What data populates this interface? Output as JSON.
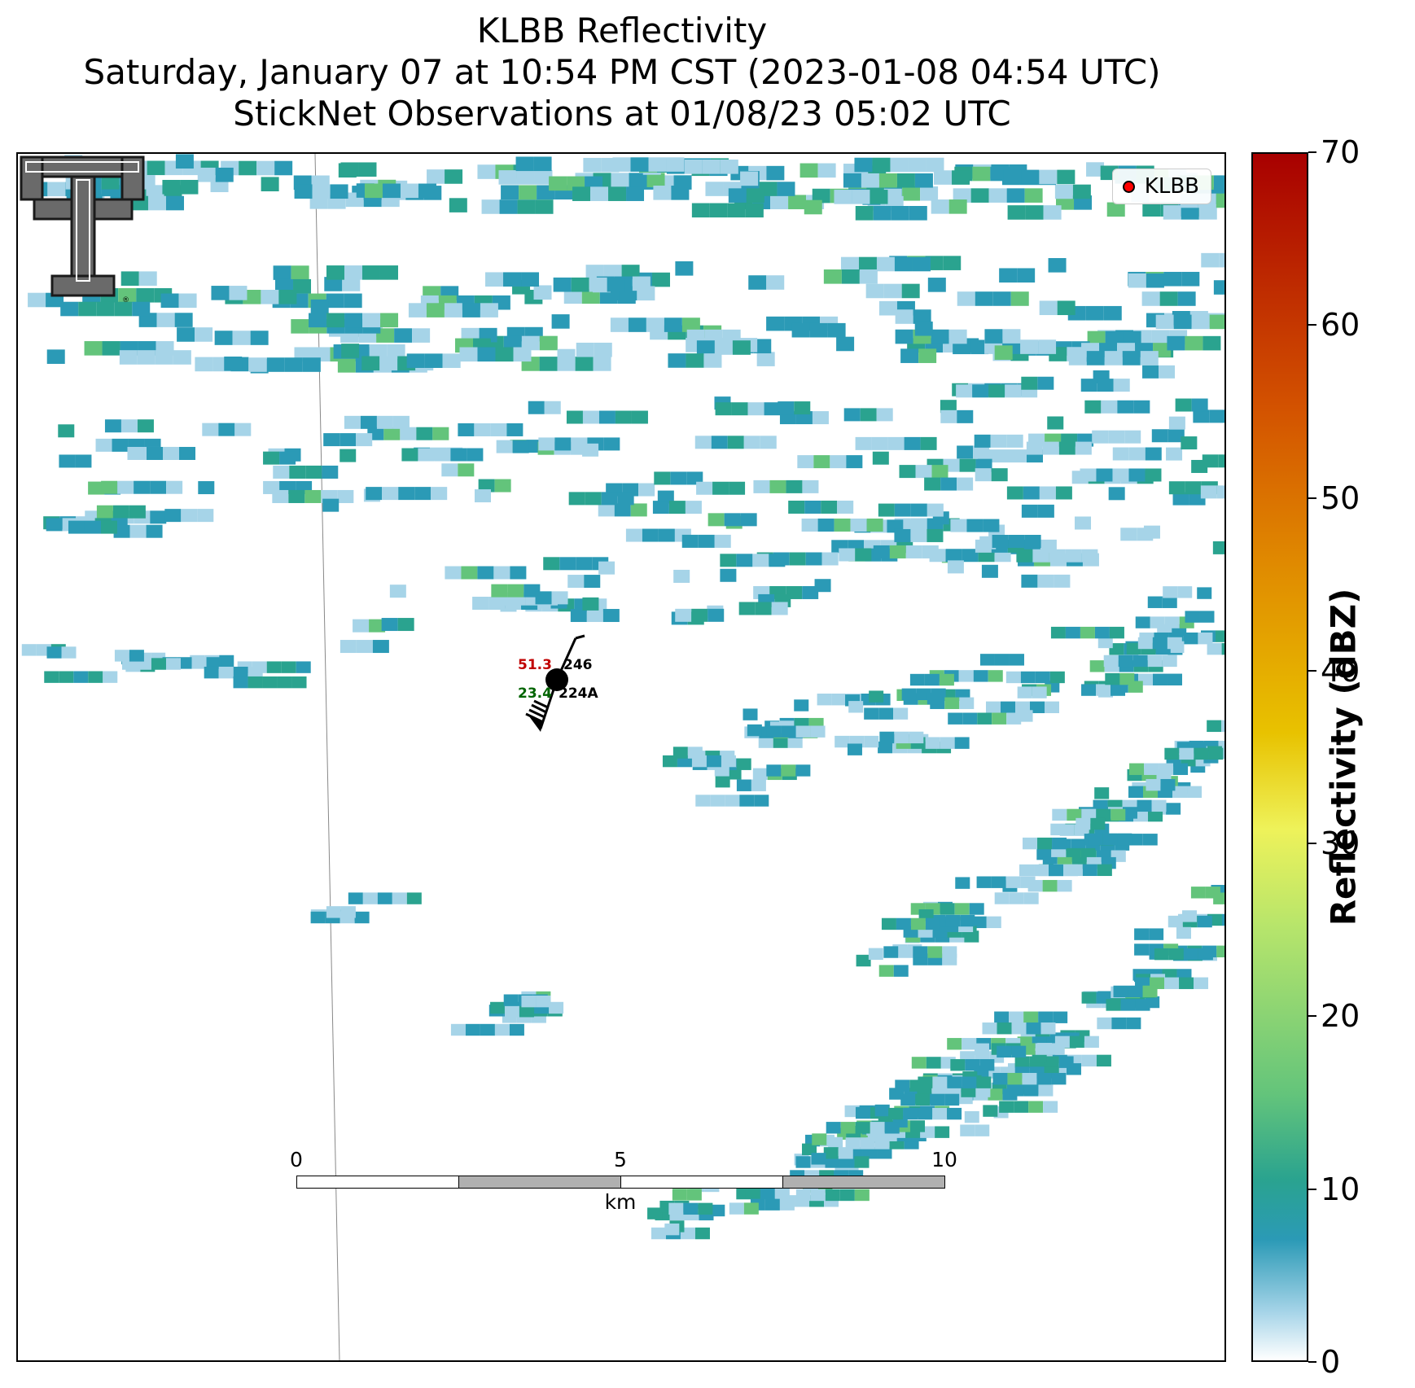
{
  "title": {
    "line1": "KLBB Reflectivity",
    "line2": "Saturday, January 07 at 10:54 PM CST (2023-01-08 04:54 UTC)",
    "line3": "StickNet Observations at 01/08/23 05:02 UTC"
  },
  "legend": {
    "label": "KLBB",
    "marker_color": "#ff0000"
  },
  "logo": {
    "name": "texas-tech-double-t-logo",
    "mark": "®"
  },
  "station": {
    "temperature": "51.3",
    "dewpoint": "23.4",
    "id_top": "246",
    "id_bottom": "224A",
    "temperature_color": "#c00000",
    "dewpoint_color": "#006400"
  },
  "scale_bar": {
    "ticks": [
      "0",
      "5",
      "10"
    ],
    "unit": "km"
  },
  "colorbar": {
    "label": "Reflectivity (dBZ)",
    "ticks": [
      "0",
      "10",
      "20",
      "30",
      "40",
      "50",
      "60",
      "70"
    ],
    "range": [
      0,
      70
    ],
    "colors": [
      "#ffffff",
      "#a6d4e8",
      "#2b9ab6",
      "#2aa38f",
      "#63c47b",
      "#b7e56b",
      "#eef25a",
      "#e8c200",
      "#e08a00",
      "#d35200",
      "#a80000"
    ]
  }
}
